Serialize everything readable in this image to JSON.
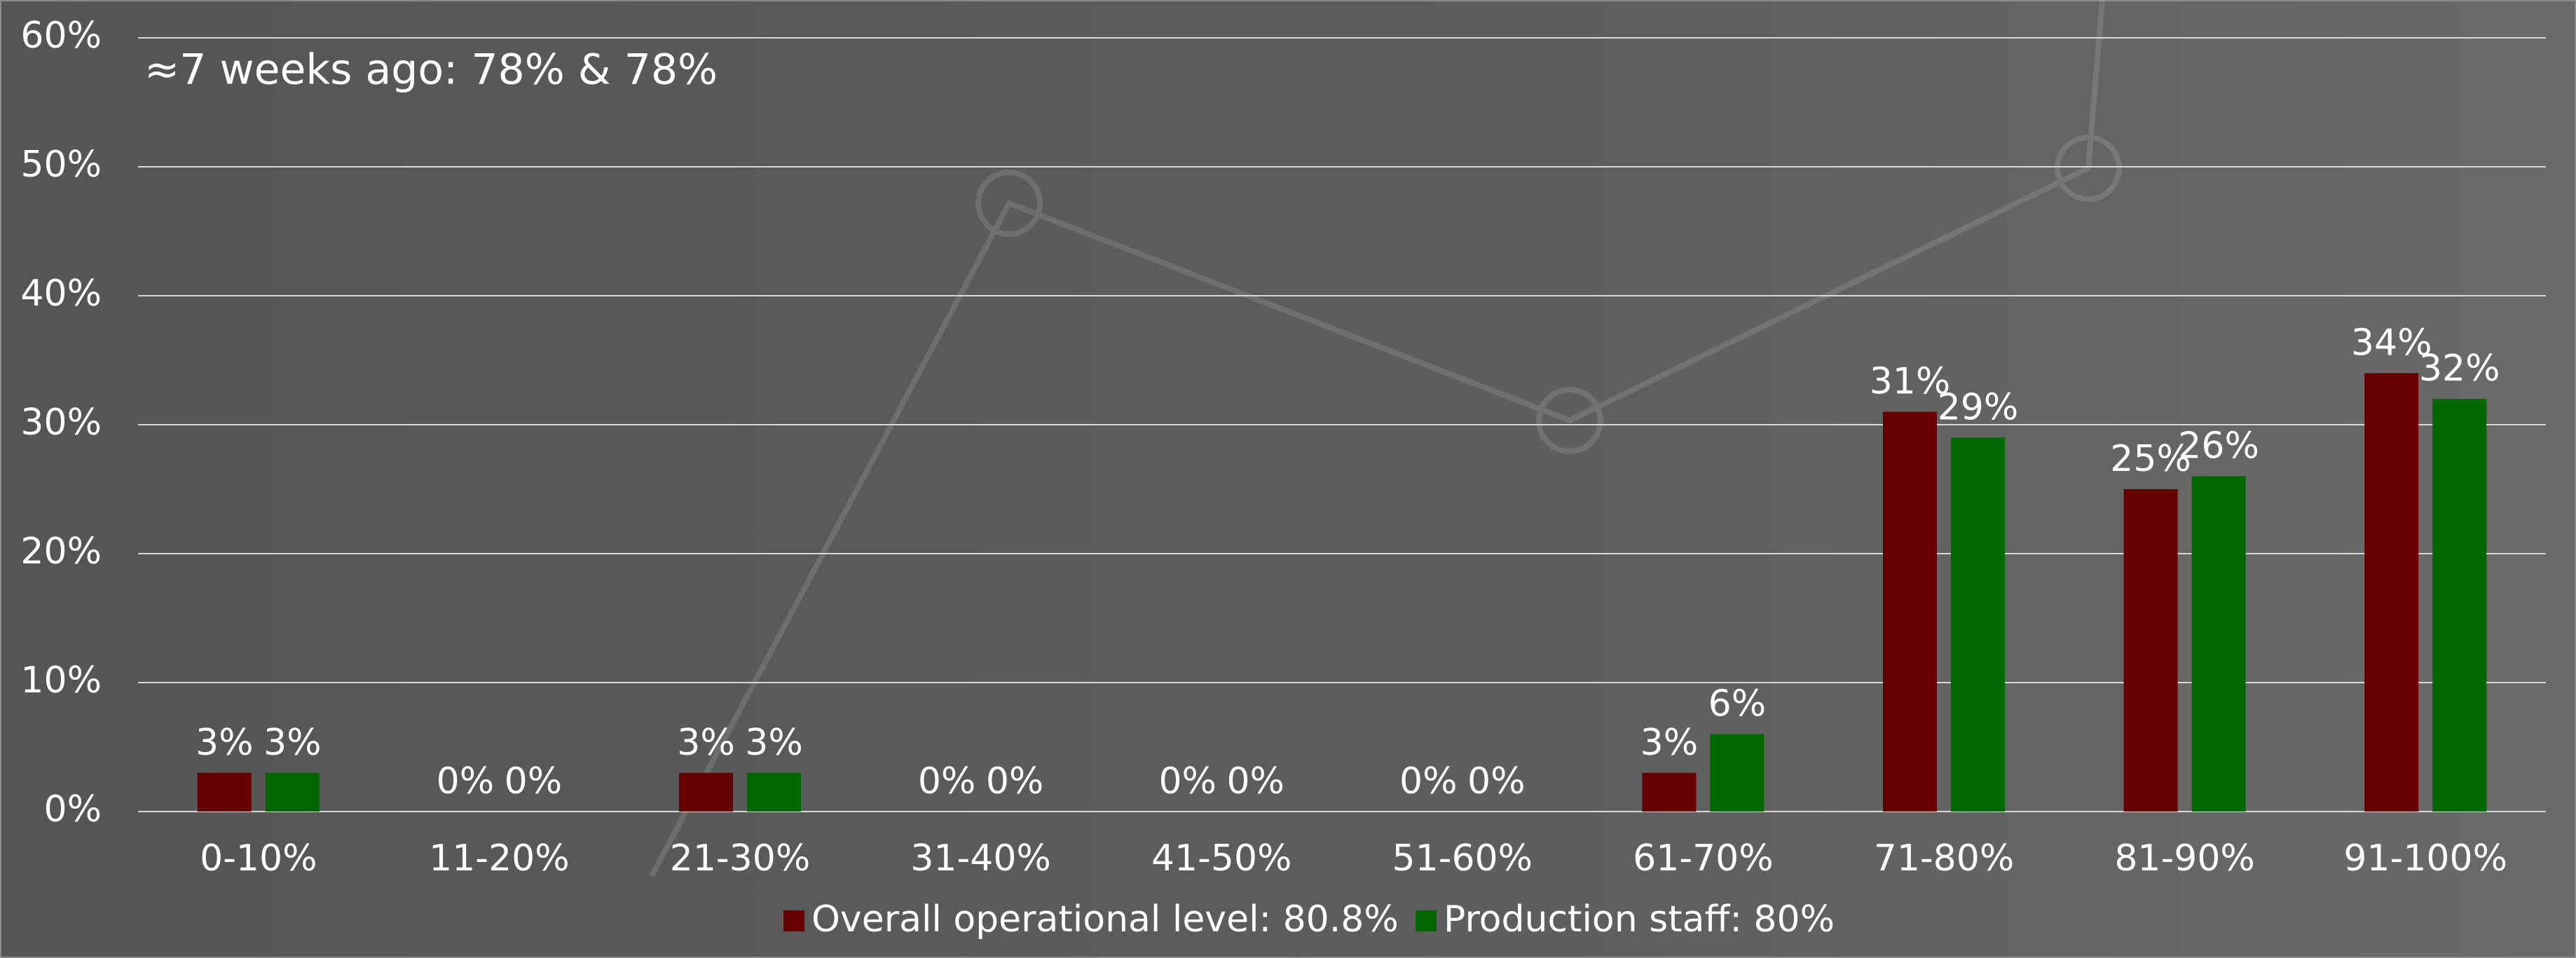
{
  "chart_data": {
    "type": "bar",
    "annotation": "≈7 weeks ago: 78% & 78%",
    "categories": [
      "0-10%",
      "11-20%",
      "21-30%",
      "31-40%",
      "41-50%",
      "51-60%",
      "61-70%",
      "71-80%",
      "81-90%",
      "91-100%"
    ],
    "series": [
      {
        "name": "Overall operational level: 80.8%",
        "color": "#660000",
        "values": [
          3,
          0,
          3,
          0,
          0,
          0,
          3,
          31,
          25,
          34
        ],
        "value_labels": [
          "3%",
          "0%",
          "3%",
          "0%",
          "0%",
          "0%",
          "3%",
          "31%",
          "25%",
          "34%"
        ]
      },
      {
        "name": "Production staff: 80%",
        "color": "#006600",
        "values": [
          3,
          0,
          3,
          0,
          0,
          0,
          6,
          29,
          26,
          32
        ],
        "value_labels": [
          "3%",
          "0%",
          "3%",
          "0%",
          "0%",
          "0%",
          "6%",
          "29%",
          "26%",
          "32%"
        ]
      }
    ],
    "ylim": [
      0,
      60
    ],
    "yticks": [
      {
        "value": 0,
        "label": "0%"
      },
      {
        "value": 10,
        "label": "10%"
      },
      {
        "value": 20,
        "label": "20%"
      },
      {
        "value": 30,
        "label": "30%"
      },
      {
        "value": 40,
        "label": "40%"
      },
      {
        "value": 50,
        "label": "50%"
      },
      {
        "value": 60,
        "label": "60%"
      }
    ],
    "grid": true
  }
}
